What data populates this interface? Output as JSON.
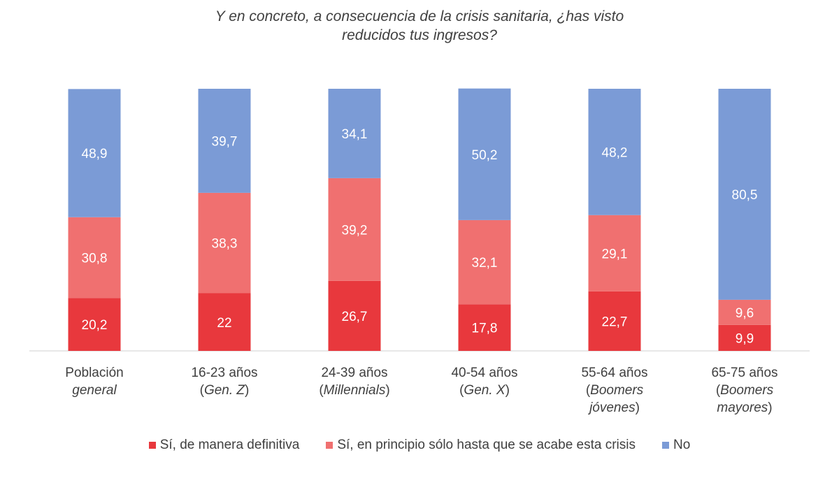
{
  "chart_data": {
    "type": "bar",
    "stacked": true,
    "title_line1": "Y en concreto, a consecuencia de la crisis sanitaria, ¿has visto",
    "title_line2": "reducidos tus ingresos?",
    "categories": [
      {
        "line1": "Población",
        "line2": "general",
        "line3": ""
      },
      {
        "line1": "16-23 años",
        "line2": "(Gen. Z)",
        "line3": ""
      },
      {
        "line1": "24-39 años",
        "line2": "(Millennials)",
        "line3": ""
      },
      {
        "line1": "40-54 años",
        "line2": "(Gen. X)",
        "line3": ""
      },
      {
        "line1": "55-64 años",
        "line2": "(Boomers",
        "line3": "jóvenes)"
      },
      {
        "line1": "65-75 años",
        "line2": "(Boomers",
        "line3": "mayores)"
      }
    ],
    "series": [
      {
        "name": "Sí, de manera definitiva",
        "color": "#E8383D",
        "values": [
          20.2,
          22,
          26.7,
          17.8,
          22.7,
          9.9
        ],
        "labels": [
          "20,2",
          "22",
          "26,7",
          "17,8",
          "22,7",
          "9,9"
        ]
      },
      {
        "name": "Sí, en principio sólo hasta que se acabe esta crisis",
        "color": "#F07070",
        "values": [
          30.8,
          38.3,
          39.2,
          32.1,
          29.1,
          9.6
        ],
        "labels": [
          "30,8",
          "38,3",
          "39,2",
          "32,1",
          "29,1",
          "9,6"
        ]
      },
      {
        "name": "No",
        "color": "#7B9BD6",
        "values": [
          48.9,
          39.7,
          34.1,
          50.2,
          48.2,
          80.5
        ],
        "labels": [
          "48,9",
          "39,7",
          "34,1",
          "50,2",
          "48,2",
          "80,5"
        ]
      }
    ],
    "ylim": [
      0,
      100
    ],
    "grid": false,
    "legend_position": "bottom"
  }
}
